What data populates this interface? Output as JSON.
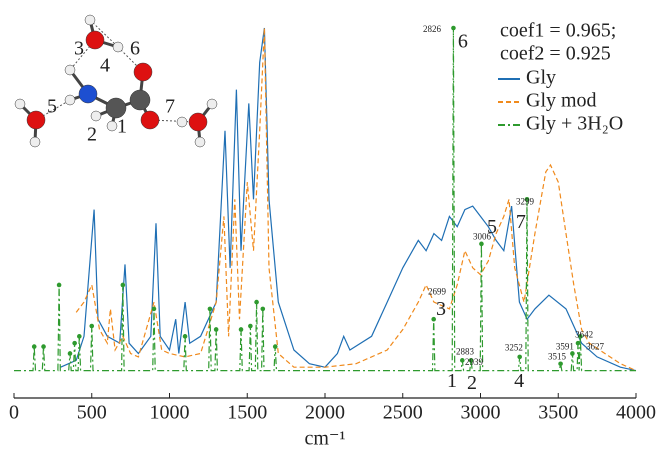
{
  "chart_data": {
    "type": "line",
    "xlabel": "cm⁻¹",
    "xlim": [
      0,
      4000
    ],
    "xticks": [
      0,
      500,
      1000,
      1500,
      2000,
      2500,
      3000,
      3500,
      4000
    ],
    "ylim": [
      -0.08,
      1.0
    ],
    "annotations": [
      "coef1 = 0.965;",
      "coef2 = 0.925"
    ],
    "series": [
      {
        "name": "Gly",
        "color": "#1f6fb4",
        "dash": "solid",
        "x": [
          300,
          400,
          450,
          515,
          540,
          600,
          680,
          714,
          740,
          800,
          880,
          913,
          940,
          1000,
          1040,
          1060,
          1100,
          1130,
          1200,
          1300,
          1357,
          1390,
          1430,
          1460,
          1510,
          1540,
          1580,
          1610,
          1640,
          1700,
          1800,
          1900,
          2000,
          2080,
          2120,
          2160,
          2300,
          2400,
          2500,
          2600,
          2650,
          2700,
          2750,
          2800,
          2850,
          2900,
          2950,
          3000,
          3050,
          3100,
          3150,
          3200,
          3250,
          3300,
          3350,
          3440,
          3550,
          3650,
          3750,
          3900,
          4000
        ],
        "values": [
          0.01,
          0.03,
          0.1,
          0.47,
          0.15,
          0.1,
          0.08,
          0.31,
          0.08,
          0.05,
          0.1,
          0.43,
          0.1,
          0.06,
          0.15,
          0.05,
          0.2,
          0.08,
          0.1,
          0.2,
          0.7,
          0.3,
          0.82,
          0.35,
          0.78,
          0.5,
          0.9,
          1.0,
          0.5,
          0.2,
          0.06,
          0.02,
          0.01,
          0.05,
          0.1,
          0.06,
          0.1,
          0.2,
          0.3,
          0.38,
          0.35,
          0.4,
          0.38,
          0.45,
          0.42,
          0.47,
          0.48,
          0.45,
          0.42,
          0.38,
          0.35,
          0.48,
          0.2,
          0.15,
          0.18,
          0.22,
          0.18,
          0.08,
          0.04,
          0.01,
          0.0
        ]
      },
      {
        "name": "Gly mod",
        "color": "#f08a1c",
        "dash": "dash",
        "x": [
          400,
          450,
          500,
          550,
          600,
          620,
          650,
          700,
          750,
          800,
          900,
          950,
          1000,
          1100,
          1200,
          1300,
          1350,
          1380,
          1420,
          1450,
          1500,
          1540,
          1580,
          1610,
          1640,
          1700,
          1800,
          2000,
          2200,
          2400,
          2500,
          2600,
          2650,
          2700,
          2800,
          2850,
          2900,
          2950,
          3000,
          3050,
          3100,
          3150,
          3183,
          3220,
          3280,
          3350,
          3420,
          3450,
          3500,
          3550,
          3600,
          3650,
          3700,
          3800,
          3900,
          4000
        ],
        "values": [
          0.17,
          0.2,
          0.25,
          0.12,
          0.08,
          0.18,
          0.06,
          0.1,
          0.05,
          0.04,
          0.2,
          0.06,
          0.05,
          0.04,
          0.05,
          0.2,
          0.45,
          0.1,
          0.5,
          0.15,
          0.55,
          0.35,
          0.7,
          1.0,
          0.3,
          0.05,
          0.01,
          0.01,
          0.02,
          0.06,
          0.12,
          0.2,
          0.25,
          0.2,
          0.18,
          0.25,
          0.35,
          0.3,
          0.28,
          0.32,
          0.4,
          0.45,
          0.5,
          0.3,
          0.2,
          0.4,
          0.58,
          0.6,
          0.55,
          0.4,
          0.25,
          0.12,
          0.08,
          0.05,
          0.02,
          0.0
        ]
      },
      {
        "name": "Gly + 3H₂O",
        "color": "#2e9a2e",
        "dash": "dashdot",
        "markers": true,
        "x": [
          0,
          122,
          130,
          138,
          182,
          190,
          198,
          282,
          290,
          298,
          352,
          360,
          368,
          382,
          390,
          398,
          412,
          420,
          428,
          492,
          500,
          508,
          692,
          700,
          708,
          892,
          900,
          908,
          1092,
          1100,
          1108,
          1252,
          1260,
          1268,
          1292,
          1300,
          1308,
          1452,
          1460,
          1468,
          1512,
          1520,
          1528,
          1552,
          1560,
          1568,
          1592,
          1600,
          1608,
          1672,
          1680,
          1688,
          2691,
          2699,
          2707,
          2818,
          2826,
          2834,
          2875,
          2883,
          2891,
          2931,
          2939,
          2947,
          2998,
          3006,
          3014,
          3244,
          3252,
          3260,
          3291,
          3299,
          3307,
          3507,
          3515,
          3523,
          3583,
          3591,
          3599,
          3621,
          3627,
          3634,
          3642,
          3650,
          4000
        ],
        "values": [
          0,
          0,
          0.07,
          0,
          0,
          0.07,
          0,
          0,
          0.25,
          0,
          0,
          0.05,
          0,
          0,
          0.08,
          0,
          0,
          0.1,
          0,
          0,
          0.13,
          0,
          0,
          0.25,
          0,
          0,
          0.18,
          0,
          0,
          0.1,
          0,
          0,
          0.18,
          0,
          0,
          0.12,
          0,
          0,
          0.12,
          0,
          0,
          0.13,
          0,
          0,
          0.2,
          0,
          0,
          0.18,
          0,
          0,
          0.07,
          0,
          0,
          0.15,
          0,
          0,
          1.0,
          0,
          0,
          0.03,
          0,
          0,
          0.03,
          0,
          0,
          0.37,
          0,
          0,
          0.04,
          0,
          0,
          0.5,
          0,
          0,
          0.02,
          0,
          0,
          0.05,
          0,
          0,
          0.08,
          0,
          0.1,
          0,
          0
        ]
      }
    ],
    "peak_labels": [
      {
        "label": 2826,
        "at": [
          2688,
          0.994
        ]
      },
      {
        "label": 2699,
        "at": [
          2720,
          0.228
        ]
      },
      {
        "label": 3006,
        "at": [
          3010,
          0.389
        ]
      },
      {
        "label": 3299,
        "at": [
          3286,
          0.491
        ]
      },
      {
        "label": 2883,
        "at": [
          2900,
          0.053
        ]
      },
      {
        "label": 2939,
        "at": [
          2958,
          0.023
        ]
      },
      {
        "label": 3252,
        "at": [
          3215,
          0.064
        ]
      },
      {
        "label": 3515,
        "at": [
          3492,
          0.038
        ]
      },
      {
        "label": 3591,
        "at": [
          3543,
          0.067
        ]
      },
      {
        "label": 3642,
        "at": [
          3666,
          0.102
        ]
      },
      {
        "label": 3627,
        "at": [
          3736,
          0.067
        ]
      }
    ],
    "mode_labels": [
      {
        "text": "6",
        "at": [
          2887,
          0.956
        ]
      },
      {
        "text": "3",
        "at": [
          2746,
          0.175
        ]
      },
      {
        "text": "5",
        "at": [
          3074,
          0.415
        ]
      },
      {
        "text": "7",
        "at": [
          3260,
          0.43
        ]
      },
      {
        "text": "1",
        "at": [
          2817,
          -0.035
        ]
      },
      {
        "text": "2",
        "at": [
          2945,
          -0.04
        ]
      },
      {
        "text": "4",
        "at": [
          3248,
          -0.035
        ]
      }
    ],
    "molecule_labels": [
      "3",
      "6",
      "4",
      "5",
      "7",
      "2",
      "1"
    ]
  }
}
